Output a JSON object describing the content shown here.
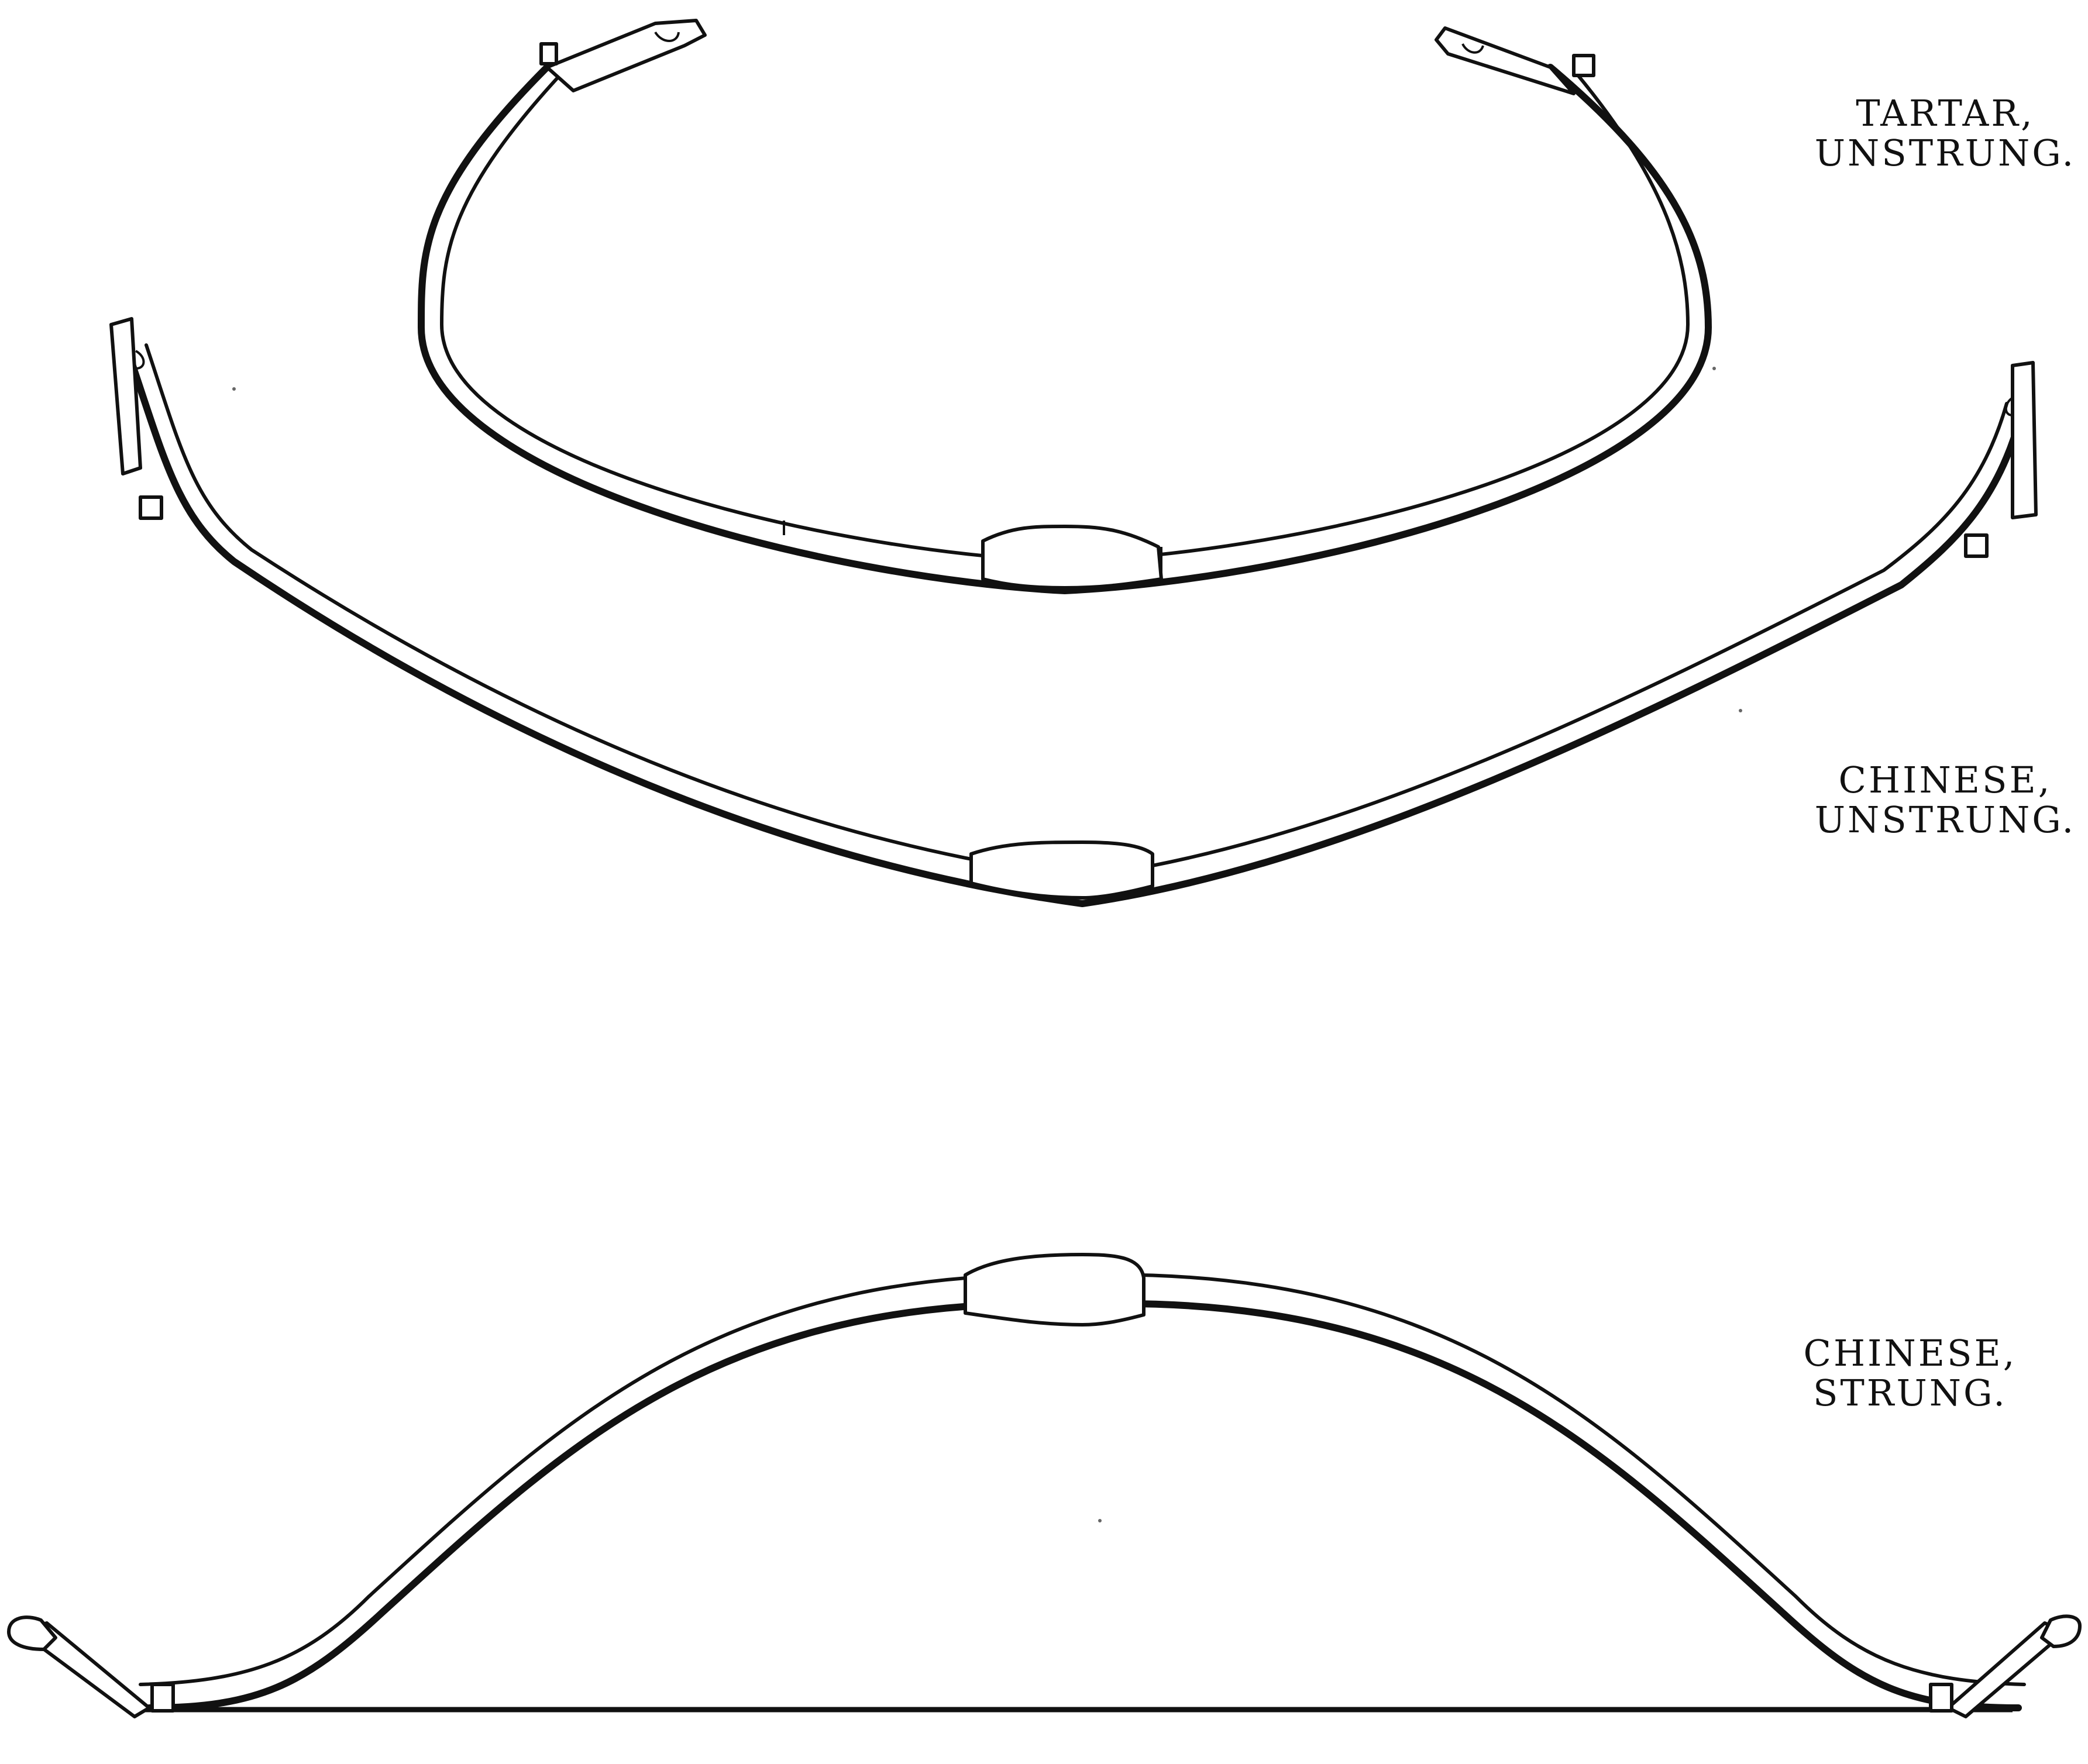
{
  "captions": {
    "tartar_unstrung": {
      "line1": "TARTAR,",
      "line2": "UNSTRUNG."
    },
    "chinese_unstrung": {
      "line1": "CHINESE,",
      "line2": "UNSTRUNG."
    },
    "chinese_strung": {
      "line1": "CHINESE,",
      "line2": "STRUNG."
    }
  },
  "colors": {
    "ink": "#111111",
    "paper": "#ffffff"
  }
}
